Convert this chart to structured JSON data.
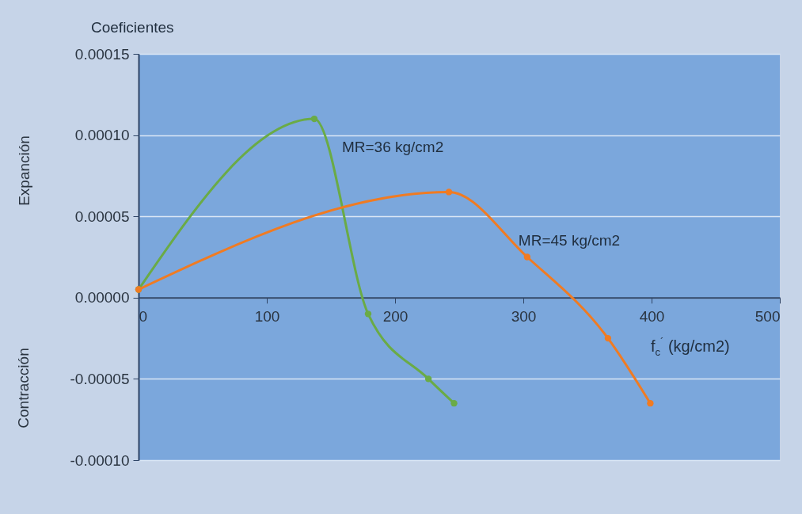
{
  "chart_data": {
    "type": "line",
    "title": "Coeficientes",
    "xlabel": "f$_{c}$$^{´}$ (kg/cm2)",
    "ylabel": "Expanción",
    "annotations": [
      "Contracción"
    ],
    "series": [
      {
        "name": "MR=36 kg/cm2",
        "color": "#6aab46",
        "x": [
          0,
          137,
          179,
          226,
          246
        ],
        "values": [
          5e-06,
          0.00011,
          -1e-05,
          -5e-05,
          -6.5e-05
        ]
      },
      {
        "name": "MR=45 kg/cm2",
        "color": "#f07b22",
        "x": [
          0,
          242,
          303,
          366,
          399
        ],
        "values": [
          5e-06,
          6.5e-05,
          2.5e-05,
          -2.5e-05,
          -6.5e-05
        ]
      }
    ],
    "xlim": [
      0,
      500
    ],
    "xticks": [
      0,
      100,
      200,
      300,
      400,
      500
    ],
    "ylim": [
      -0.0001,
      0.00015
    ],
    "yticks": [
      {
        "value": -0.0001,
        "label": "-0.00010"
      },
      {
        "value": -5e-05,
        "label": "-0.00005"
      },
      {
        "value": 0,
        "label": "0.00000"
      },
      {
        "value": 5e-05,
        "label": "0.00005"
      },
      {
        "value": 0.0001,
        "label": "0.00010"
      },
      {
        "value": 0.00015,
        "label": "0.00015"
      }
    ],
    "grid": "y",
    "marker": "circle",
    "line_style": "solid"
  }
}
